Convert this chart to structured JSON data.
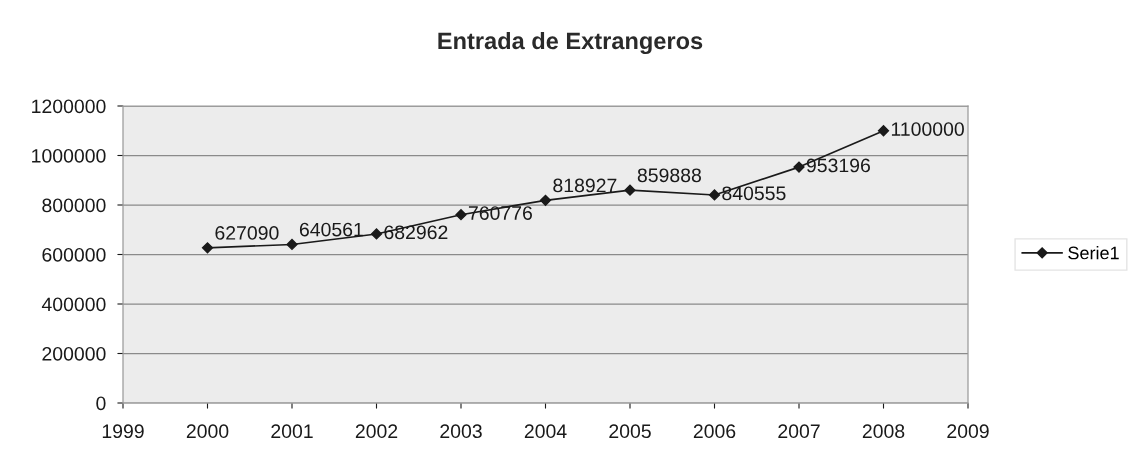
{
  "chart_data": {
    "type": "line",
    "title": "Entrada de Extrangeros",
    "x": [
      2000,
      2001,
      2002,
      2003,
      2004,
      2005,
      2006,
      2007,
      2008
    ],
    "series": [
      {
        "name": "Serie1",
        "color": "#1a1a1a",
        "values": [
          627090,
          640561,
          682962,
          760776,
          818927,
          859888,
          840555,
          953196,
          1100000
        ]
      }
    ],
    "xlim": [
      1999,
      2009
    ],
    "xticks": [
      1999,
      2000,
      2001,
      2002,
      2003,
      2004,
      2005,
      2006,
      2007,
      2008,
      2009
    ],
    "ylim": [
      0,
      1200000
    ],
    "yticks": [
      0,
      200000,
      400000,
      600000,
      800000,
      1000000,
      1200000
    ],
    "grid": "y",
    "legend": "right",
    "marker": "diamond",
    "line_style": "solid",
    "data_labels": true
  }
}
